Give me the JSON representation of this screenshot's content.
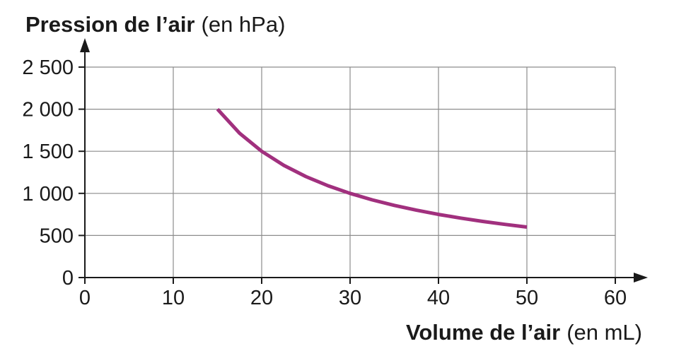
{
  "chart_data": {
    "type": "line",
    "ylabel_main": "Pression de l’air",
    "ylabel_unit": "(en hPa)",
    "xlabel_main": "Volume de l’air",
    "xlabel_unit": "(en mL)",
    "xlim": [
      0,
      60
    ],
    "ylim": [
      0,
      2500
    ],
    "x_ticks": [
      0,
      10,
      20,
      30,
      40,
      50,
      60
    ],
    "x_tick_labels": [
      "0",
      "10",
      "20",
      "30",
      "40",
      "50",
      "60"
    ],
    "y_ticks": [
      0,
      500,
      1000,
      1500,
      2000,
      2500
    ],
    "y_tick_labels": [
      "0",
      "500",
      "1 000",
      "1 500",
      "2 000",
      "2 500"
    ],
    "grid": true,
    "series": [
      {
        "color": "#a1307e",
        "x": [
          15,
          17.5,
          20,
          22.5,
          25,
          27.5,
          30,
          32.5,
          35,
          37.5,
          40,
          42.5,
          45,
          47.5,
          50
        ],
        "y": [
          2000,
          1714,
          1500,
          1333,
          1200,
          1091,
          1000,
          923,
          857,
          800,
          750,
          706,
          667,
          632,
          600
        ]
      }
    ]
  }
}
